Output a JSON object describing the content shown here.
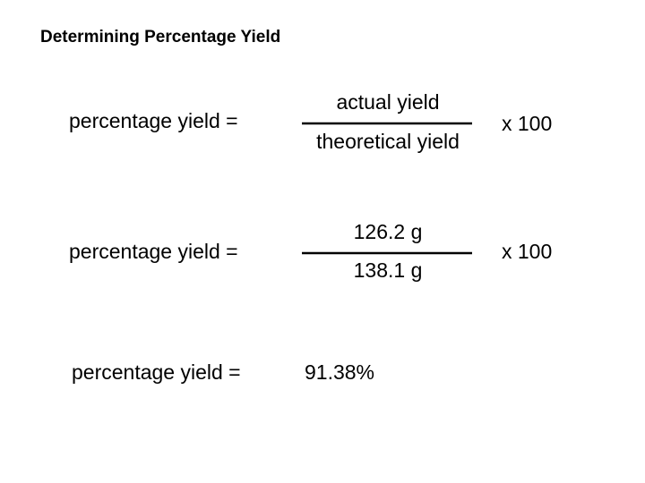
{
  "header": {
    "title": "Determining Percentage Yield"
  },
  "equations": [
    {
      "lhs": "percentage yield =",
      "numerator": "actual yield",
      "denominator": "theoretical yield",
      "multiplier": "x 100"
    },
    {
      "lhs": "percentage yield =",
      "numerator": "126.2 g",
      "denominator": "138.1 g",
      "multiplier": "x 100"
    },
    {
      "lhs": "percentage yield =",
      "result": "91.38%"
    }
  ]
}
